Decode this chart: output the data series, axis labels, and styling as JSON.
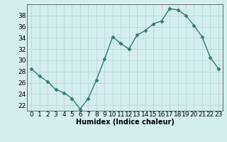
{
  "x": [
    0,
    1,
    2,
    3,
    4,
    5,
    6,
    7,
    8,
    9,
    10,
    11,
    12,
    13,
    14,
    15,
    16,
    17,
    18,
    19,
    20,
    21,
    22,
    23
  ],
  "y": [
    28.5,
    27.2,
    26.2,
    24.8,
    24.2,
    23.2,
    21.3,
    23.2,
    26.5,
    30.2,
    34.2,
    33.0,
    32.0,
    34.5,
    35.3,
    36.5,
    37.0,
    39.2,
    39.0,
    38.0,
    36.2,
    34.2,
    30.5,
    28.5
  ],
  "line_color": "#2e7d6e",
  "marker": "D",
  "marker_size": 2.5,
  "marker_color": "#2e7d6e",
  "bg_color": "#d4eeee",
  "grid_color": "#b8d8d8",
  "xlabel": "Humidex (Indice chaleur)",
  "xlim": [
    -0.5,
    23.5
  ],
  "ylim": [
    21,
    40
  ],
  "yticks": [
    22,
    24,
    26,
    28,
    30,
    32,
    34,
    36,
    38
  ],
  "xticks": [
    0,
    1,
    2,
    3,
    4,
    5,
    6,
    7,
    8,
    9,
    10,
    11,
    12,
    13,
    14,
    15,
    16,
    17,
    18,
    19,
    20,
    21,
    22,
    23
  ],
  "xlabel_fontsize": 7,
  "tick_fontsize": 6.5,
  "line_width": 1.0
}
